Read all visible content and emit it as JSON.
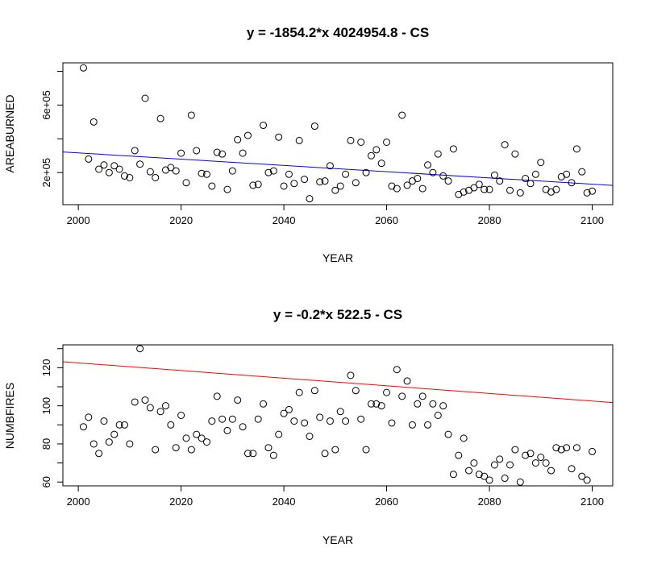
{
  "chart_data": [
    {
      "type": "scatter",
      "title": "y = -1854.2*x 4024954.8 - CS",
      "xlabel": "YEAR",
      "ylabel": "AREABURNED",
      "xlim": [
        1997,
        2104
      ],
      "ylim": [
        10000,
        850000
      ],
      "xticks": [
        2000,
        2020,
        2040,
        2060,
        2080,
        2100
      ],
      "yticks": [
        200000,
        400000,
        600000,
        800000
      ],
      "ytick_labels": [
        "2e+05",
        "",
        "6e+05",
        ""
      ],
      "grid": false,
      "fit_line": {
        "slope": -1854.2,
        "intercept": 4024954.8,
        "color": "#0000ff"
      },
      "x": [
        2001,
        2002,
        2003,
        2004,
        2005,
        2006,
        2007,
        2008,
        2009,
        2010,
        2011,
        2012,
        2013,
        2014,
        2015,
        2016,
        2017,
        2018,
        2019,
        2020,
        2021,
        2022,
        2023,
        2024,
        2025,
        2026,
        2027,
        2028,
        2029,
        2030,
        2031,
        2032,
        2033,
        2034,
        2035,
        2036,
        2037,
        2038,
        2039,
        2040,
        2041,
        2042,
        2043,
        2044,
        2045,
        2046,
        2047,
        2048,
        2049,
        2050,
        2051,
        2052,
        2053,
        2054,
        2055,
        2056,
        2057,
        2058,
        2059,
        2060,
        2061,
        2062,
        2063,
        2064,
        2065,
        2066,
        2067,
        2068,
        2069,
        2070,
        2071,
        2072,
        2073,
        2074,
        2075,
        2076,
        2077,
        2078,
        2079,
        2080,
        2081,
        2082,
        2083,
        2084,
        2085,
        2086,
        2087,
        2088,
        2089,
        2090,
        2091,
        2092,
        2093,
        2094,
        2095,
        2096,
        2097,
        2098,
        2099,
        2100
      ],
      "y": [
        820000,
        280000,
        500000,
        220000,
        245000,
        200000,
        240000,
        220000,
        180000,
        170000,
        330000,
        250000,
        640000,
        205000,
        170000,
        520000,
        215000,
        230000,
        210000,
        315000,
        140000,
        540000,
        330000,
        195000,
        190000,
        120000,
        320000,
        310000,
        100000,
        210000,
        395000,
        315000,
        420000,
        125000,
        130000,
        480000,
        200000,
        210000,
        410000,
        120000,
        190000,
        135000,
        390000,
        160000,
        45000,
        475000,
        145000,
        150000,
        240000,
        95000,
        120000,
        190000,
        390000,
        140000,
        380000,
        200000,
        300000,
        335000,
        255000,
        380000,
        120000,
        105000,
        540000,
        125000,
        150000,
        165000,
        105000,
        245000,
        200000,
        310000,
        180000,
        150000,
        340000,
        70000,
        85000,
        95000,
        110000,
        130000,
        100000,
        100000,
        185000,
        150000,
        365000,
        95000,
        310000,
        80000,
        165000,
        135000,
        190000,
        260000,
        100000,
        85000,
        100000,
        175000,
        190000,
        140000,
        340000,
        205000,
        80000,
        90000
      ]
    },
    {
      "type": "scatter",
      "title": "y = -0.2*x 522.5 - CS",
      "xlabel": "YEAR",
      "ylabel": "NUMBFIRES",
      "xlim": [
        1997,
        2104
      ],
      "ylim": [
        58,
        132
      ],
      "xticks": [
        2000,
        2020,
        2040,
        2060,
        2080,
        2100
      ],
      "yticks": [
        60,
        70,
        80,
        90,
        100,
        110,
        120,
        130
      ],
      "ytick_labels": [
        "60",
        "",
        "80",
        "",
        "100",
        "",
        "120",
        ""
      ],
      "grid": false,
      "fit_line": {
        "slope": -0.2,
        "intercept": 522.5,
        "color": "#ff0000"
      },
      "x": [
        2001,
        2002,
        2003,
        2004,
        2005,
        2006,
        2007,
        2008,
        2009,
        2010,
        2011,
        2012,
        2013,
        2014,
        2015,
        2016,
        2017,
        2018,
        2019,
        2020,
        2021,
        2022,
        2023,
        2024,
        2025,
        2026,
        2027,
        2028,
        2029,
        2030,
        2031,
        2032,
        2033,
        2034,
        2035,
        2036,
        2037,
        2038,
        2039,
        2040,
        2041,
        2042,
        2043,
        2044,
        2045,
        2046,
        2047,
        2048,
        2049,
        2050,
        2051,
        2052,
        2053,
        2054,
        2055,
        2056,
        2057,
        2058,
        2059,
        2060,
        2061,
        2062,
        2063,
        2064,
        2065,
        2066,
        2067,
        2068,
        2069,
        2070,
        2071,
        2072,
        2073,
        2074,
        2075,
        2076,
        2077,
        2078,
        2079,
        2080,
        2081,
        2082,
        2083,
        2084,
        2085,
        2086,
        2087,
        2088,
        2089,
        2090,
        2091,
        2092,
        2093,
        2094,
        2095,
        2096,
        2097,
        2098,
        2099,
        2100
      ],
      "y": [
        89,
        94,
        80,
        75,
        92,
        81,
        85,
        90,
        90,
        80,
        102,
        130,
        103,
        99,
        77,
        97,
        100,
        90,
        78,
        95,
        83,
        77,
        85,
        83,
        81,
        92,
        105,
        93,
        87,
        93,
        103,
        89,
        75,
        75,
        93,
        101,
        78,
        74,
        85,
        96,
        98,
        92,
        107,
        91,
        84,
        108,
        94,
        75,
        92,
        77,
        97,
        92,
        116,
        108,
        93,
        77,
        101,
        101,
        100,
        107,
        91,
        119,
        105,
        113,
        90,
        101,
        105,
        90,
        101,
        95,
        100,
        85,
        64,
        74,
        83,
        66,
        70,
        64,
        63,
        61,
        69,
        72,
        62,
        69,
        77,
        60,
        74,
        75,
        70,
        73,
        70,
        66,
        78,
        77,
        78,
        67,
        78,
        63,
        61,
        76
      ]
    }
  ]
}
